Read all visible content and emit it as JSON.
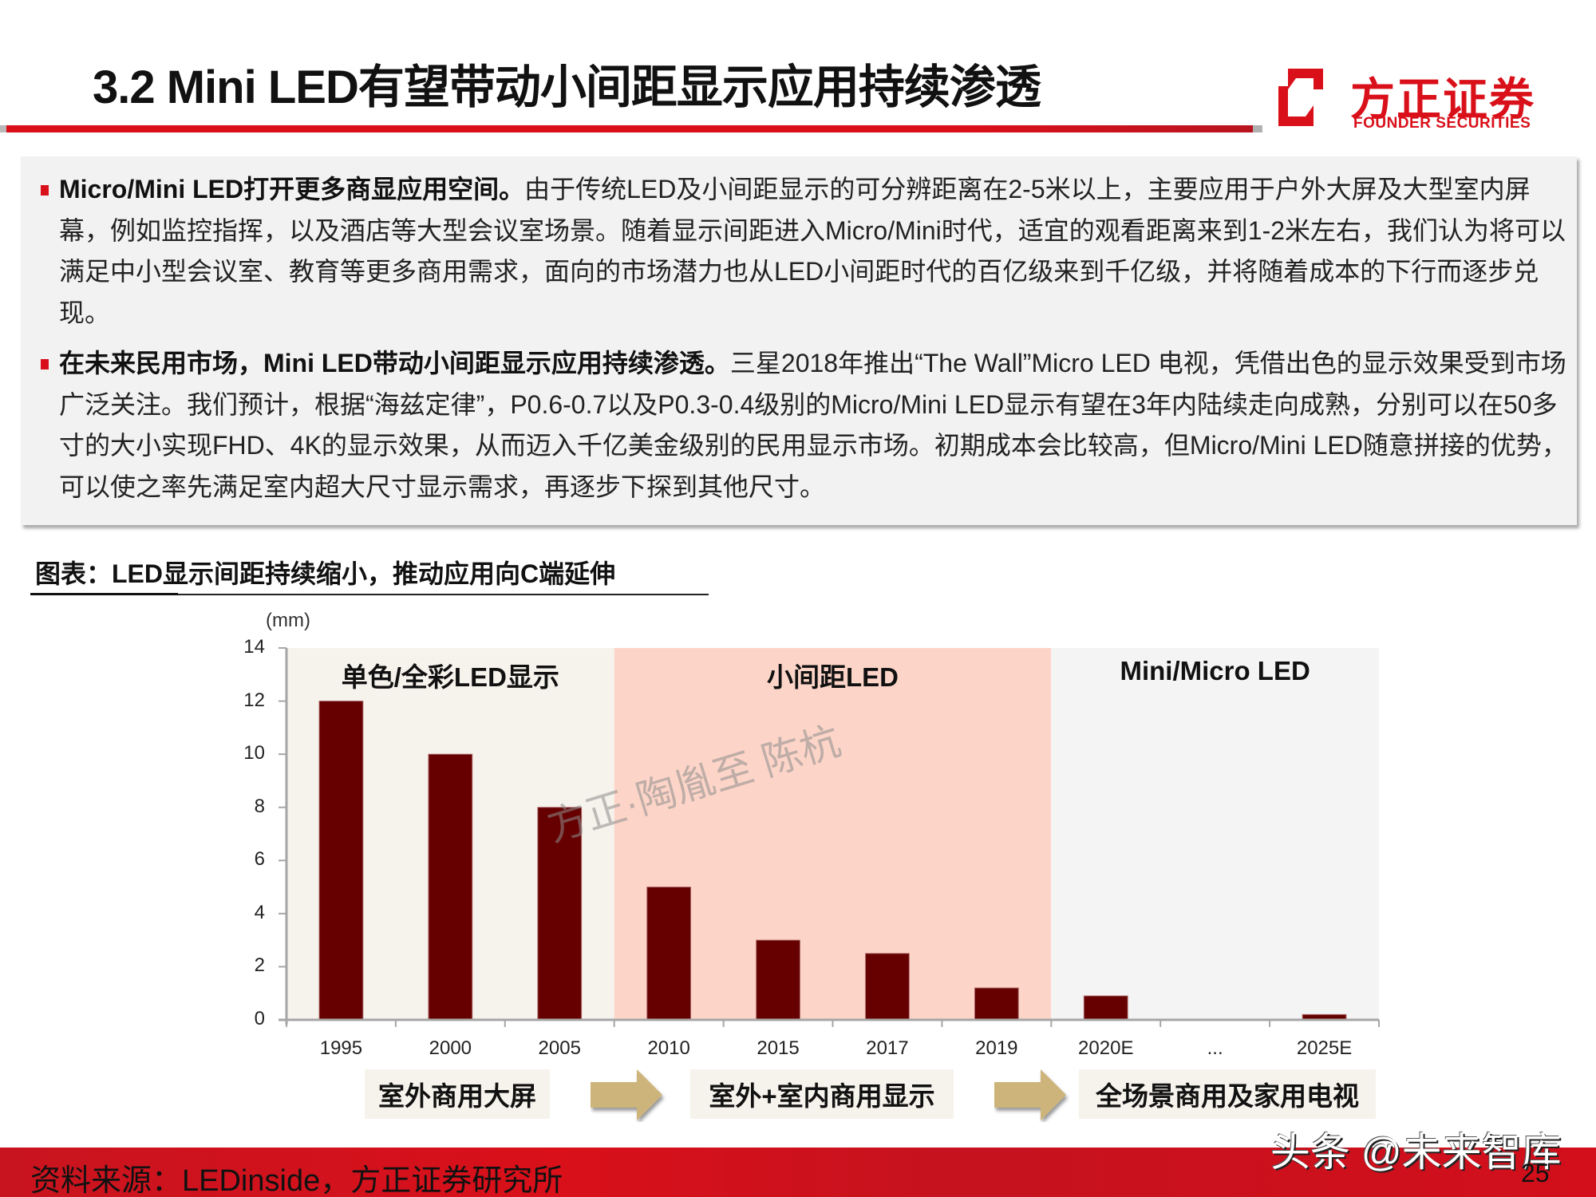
{
  "header": {
    "title": "3.2 Mini LED有望带动小间距显示应用持续渗透",
    "logo_cn": "方正证券",
    "logo_en": "FOUNDER SECURITIES",
    "brand_color": "#d9101a"
  },
  "body": {
    "paragraphs": [
      {
        "lead": "Micro/Mini  LED打开更多商显应用空间。",
        "text": "由于传统LED及小间距显示的可分辨距离在2-5米以上，主要应用于户外大屏及大型室内屏幕，例如监控指挥，以及酒店等大型会议室场景。随着显示间距进入Micro/Mini时代，适宜的观看距离来到1-2米左右，我们认为将可以满足中小型会议室、教育等更多商用需求，面向的市场潜力也从LED小间距时代的百亿级来到千亿级，并将随着成本的下行而逐步兑现。"
      },
      {
        "lead": "在未来民用市场，Mini LED带动小间距显示应用持续渗透。",
        "text": "三星2018年推出“The Wall”Micro LED 电视，凭借出色的显示效果受到市场广泛关注。我们预计，根据“海兹定律”，P0.6-0.7以及P0.3-0.4级别的Micro/Mini  LED显示有望在3年内陆续走向成熟，分别可以在50多寸的大小实现FHD、4K的显示效果，从而迈入千亿美金级别的民用显示市场。初期成本会比较高，但Micro/Mini LED随意拼接的优势，可以使之率先满足室内超大尺寸显示需求，再逐步下探到其他尺寸。"
      }
    ]
  },
  "figure": {
    "caption": "图表：LED显示间距持续缩小，推动应用向C端延伸",
    "watermark": "方正·陶胤至 陈杭",
    "phases": [
      {
        "label": "室外商用大屏"
      },
      {
        "label": "室外+室内商用显示"
      },
      {
        "label": "全场景商用及家用电视"
      }
    ]
  },
  "chart_data": {
    "type": "bar",
    "title": "LED显示间距持续缩小，推动应用向C端延伸",
    "xlabel": "",
    "ylabel": "(mm)",
    "ylim": [
      0,
      14
    ],
    "yticks": [
      0,
      2,
      4,
      6,
      8,
      10,
      12,
      14
    ],
    "categories": [
      "1995",
      "2000",
      "2005",
      "2010",
      "2015",
      "2017",
      "2019",
      "2020E",
      "...",
      "2025E"
    ],
    "values": [
      12,
      10,
      8,
      5,
      3,
      2.5,
      1.2,
      0.9,
      0,
      0.2
    ],
    "bar_color": "#660000",
    "grid": false,
    "legend": null,
    "regions": [
      {
        "label": "单色/全彩LED显示",
        "from_index": 0,
        "to_index": 2,
        "color": "#f6f2ec"
      },
      {
        "label": "小间距LED",
        "from_index": 3,
        "to_index": 6,
        "color": "#fdd5c8"
      },
      {
        "label": "Mini/Micro LED",
        "from_index": 7,
        "to_index": 9,
        "color": "#f4f4f4"
      }
    ]
  },
  "footer": {
    "source": "资料来源：LEDinside，方正证券研究所",
    "page_number": "25",
    "overlay_watermark": "头条 @未来智库"
  }
}
